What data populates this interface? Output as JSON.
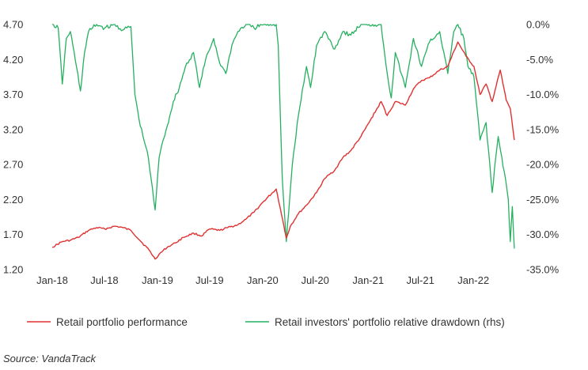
{
  "chart_data": {
    "type": "line",
    "title": "",
    "source": "Source: VandaTrack",
    "x_ticks": [
      "Jan-18",
      "Jul-18",
      "Jan-19",
      "Jul-19",
      "Jan-20",
      "Jul-20",
      "Jan-21",
      "Jul-21",
      "Jan-22"
    ],
    "y_left": {
      "min": 1.2,
      "max": 4.7,
      "ticks": [
        "4.70",
        "4.20",
        "3.70",
        "3.20",
        "2.70",
        "2.20",
        "1.70",
        "1.20"
      ]
    },
    "y_right": {
      "min": -35,
      "max": 0,
      "ticks": [
        "0.0%",
        "-5.0%",
        "-10.0%",
        "-15.0%",
        "-20.0%",
        "-25.0%",
        "-30.0%",
        "-35.0%"
      ]
    },
    "series": [
      {
        "name": "Retail portfolio performance",
        "axis": "left",
        "color": "#e03131",
        "points": [
          [
            "2018-01-01",
            1.52
          ],
          [
            "2018-02-05",
            1.6
          ],
          [
            "2018-03-05",
            1.62
          ],
          [
            "2018-04-02",
            1.66
          ],
          [
            "2018-05-07",
            1.76
          ],
          [
            "2018-06-04",
            1.8
          ],
          [
            "2018-07-02",
            1.78
          ],
          [
            "2018-08-06",
            1.82
          ],
          [
            "2018-09-03",
            1.8
          ],
          [
            "2018-10-01",
            1.76
          ],
          [
            "2018-11-05",
            1.6
          ],
          [
            "2018-12-03",
            1.48
          ],
          [
            "2018-12-24",
            1.35
          ],
          [
            "2019-01-07",
            1.42
          ],
          [
            "2019-02-04",
            1.52
          ],
          [
            "2019-03-04",
            1.58
          ],
          [
            "2019-04-01",
            1.66
          ],
          [
            "2019-05-06",
            1.72
          ],
          [
            "2019-06-03",
            1.68
          ],
          [
            "2019-07-01",
            1.78
          ],
          [
            "2019-08-05",
            1.76
          ],
          [
            "2019-09-02",
            1.8
          ],
          [
            "2019-10-07",
            1.84
          ],
          [
            "2019-11-04",
            1.92
          ],
          [
            "2019-12-02",
            2.02
          ],
          [
            "2020-01-06",
            2.18
          ],
          [
            "2020-02-17",
            2.35
          ],
          [
            "2020-03-02",
            2.08
          ],
          [
            "2020-03-23",
            1.65
          ],
          [
            "2020-04-06",
            1.82
          ],
          [
            "2020-05-04",
            2.0
          ],
          [
            "2020-06-01",
            2.12
          ],
          [
            "2020-07-06",
            2.3
          ],
          [
            "2020-08-03",
            2.5
          ],
          [
            "2020-09-07",
            2.62
          ],
          [
            "2020-10-05",
            2.8
          ],
          [
            "2020-11-02",
            2.9
          ],
          [
            "2020-12-07",
            3.1
          ],
          [
            "2021-01-04",
            3.3
          ],
          [
            "2021-02-15",
            3.6
          ],
          [
            "2021-03-08",
            3.4
          ],
          [
            "2021-04-05",
            3.6
          ],
          [
            "2021-05-10",
            3.55
          ],
          [
            "2021-06-07",
            3.78
          ],
          [
            "2021-07-05",
            3.9
          ],
          [
            "2021-08-02",
            3.94
          ],
          [
            "2021-09-06",
            4.05
          ],
          [
            "2021-10-04",
            4.1
          ],
          [
            "2021-11-08",
            4.45
          ],
          [
            "2021-12-06",
            4.25
          ],
          [
            "2022-01-03",
            4.1
          ],
          [
            "2022-01-24",
            3.7
          ],
          [
            "2022-02-14",
            3.85
          ],
          [
            "2022-03-07",
            3.6
          ],
          [
            "2022-04-04",
            4.05
          ],
          [
            "2022-04-25",
            3.62
          ],
          [
            "2022-05-09",
            3.5
          ],
          [
            "2022-05-23",
            3.05
          ]
        ]
      },
      {
        "name": "Retail investors' portfolio relative drawdown (rhs)",
        "axis": "right",
        "color": "#25b060",
        "points": [
          [
            "2018-01-01",
            0.0
          ],
          [
            "2018-01-22",
            -0.5
          ],
          [
            "2018-02-05",
            -8.5
          ],
          [
            "2018-02-19",
            -2.0
          ],
          [
            "2018-03-05",
            -1.0
          ],
          [
            "2018-03-26",
            -6.0
          ],
          [
            "2018-04-09",
            -9.5
          ],
          [
            "2018-04-23",
            -4.0
          ],
          [
            "2018-05-07",
            -1.0
          ],
          [
            "2018-06-04",
            0.0
          ],
          [
            "2018-07-02",
            -0.5
          ],
          [
            "2018-08-06",
            0.0
          ],
          [
            "2018-09-03",
            -0.8
          ],
          [
            "2018-10-01",
            -0.3
          ],
          [
            "2018-10-15",
            -10.0
          ],
          [
            "2018-10-29",
            -13.5
          ],
          [
            "2018-11-12",
            -16.0
          ],
          [
            "2018-11-26",
            -18.0
          ],
          [
            "2018-12-10",
            -22.0
          ],
          [
            "2018-12-24",
            -26.5
          ],
          [
            "2019-01-07",
            -19.0
          ],
          [
            "2019-01-21",
            -16.5
          ],
          [
            "2019-02-04",
            -14.5
          ],
          [
            "2019-02-25",
            -11.0
          ],
          [
            "2019-03-18",
            -9.0
          ],
          [
            "2019-04-08",
            -6.0
          ],
          [
            "2019-05-06",
            -4.0
          ],
          [
            "2019-05-27",
            -9.0
          ],
          [
            "2019-06-17",
            -5.0
          ],
          [
            "2019-07-15",
            -2.0
          ],
          [
            "2019-08-05",
            -5.5
          ],
          [
            "2019-08-26",
            -7.0
          ],
          [
            "2019-09-16",
            -3.0
          ],
          [
            "2019-10-07",
            -1.0
          ],
          [
            "2019-11-04",
            0.0
          ],
          [
            "2019-12-02",
            -0.5
          ],
          [
            "2020-01-06",
            0.0
          ],
          [
            "2020-02-17",
            0.0
          ],
          [
            "2020-02-24",
            -3.0
          ],
          [
            "2020-03-09",
            -22.0
          ],
          [
            "2020-03-23",
            -31.0
          ],
          [
            "2020-04-13",
            -20.0
          ],
          [
            "2020-05-04",
            -13.0
          ],
          [
            "2020-06-01",
            -6.0
          ],
          [
            "2020-06-15",
            -9.0
          ],
          [
            "2020-07-06",
            -3.0
          ],
          [
            "2020-08-03",
            -1.0
          ],
          [
            "2020-09-07",
            -3.5
          ],
          [
            "2020-10-05",
            -1.0
          ],
          [
            "2020-11-02",
            -1.5
          ],
          [
            "2020-12-07",
            0.0
          ],
          [
            "2021-01-04",
            0.0
          ],
          [
            "2021-02-15",
            0.0
          ],
          [
            "2021-03-08",
            -7.0
          ],
          [
            "2021-03-22",
            -10.5
          ],
          [
            "2021-04-05",
            -4.0
          ],
          [
            "2021-05-10",
            -9.0
          ],
          [
            "2021-06-07",
            -2.0
          ],
          [
            "2021-07-05",
            -6.0
          ],
          [
            "2021-08-02",
            -2.5
          ],
          [
            "2021-09-06",
            -1.0
          ],
          [
            "2021-10-04",
            -7.0
          ],
          [
            "2021-10-25",
            -1.0
          ],
          [
            "2021-11-08",
            0.0
          ],
          [
            "2021-11-29",
            -2.0
          ],
          [
            "2021-12-13",
            -6.0
          ],
          [
            "2022-01-03",
            -7.5
          ],
          [
            "2022-01-24",
            -16.5
          ],
          [
            "2022-02-14",
            -14.0
          ],
          [
            "2022-03-07",
            -24.0
          ],
          [
            "2022-03-28",
            -16.0
          ],
          [
            "2022-04-18",
            -21.0
          ],
          [
            "2022-05-02",
            -25.0
          ],
          [
            "2022-05-09",
            -31.0
          ],
          [
            "2022-05-16",
            -26.0
          ],
          [
            "2022-05-23",
            -32.0
          ]
        ]
      }
    ],
    "legend": {
      "placement": "bottom"
    }
  }
}
